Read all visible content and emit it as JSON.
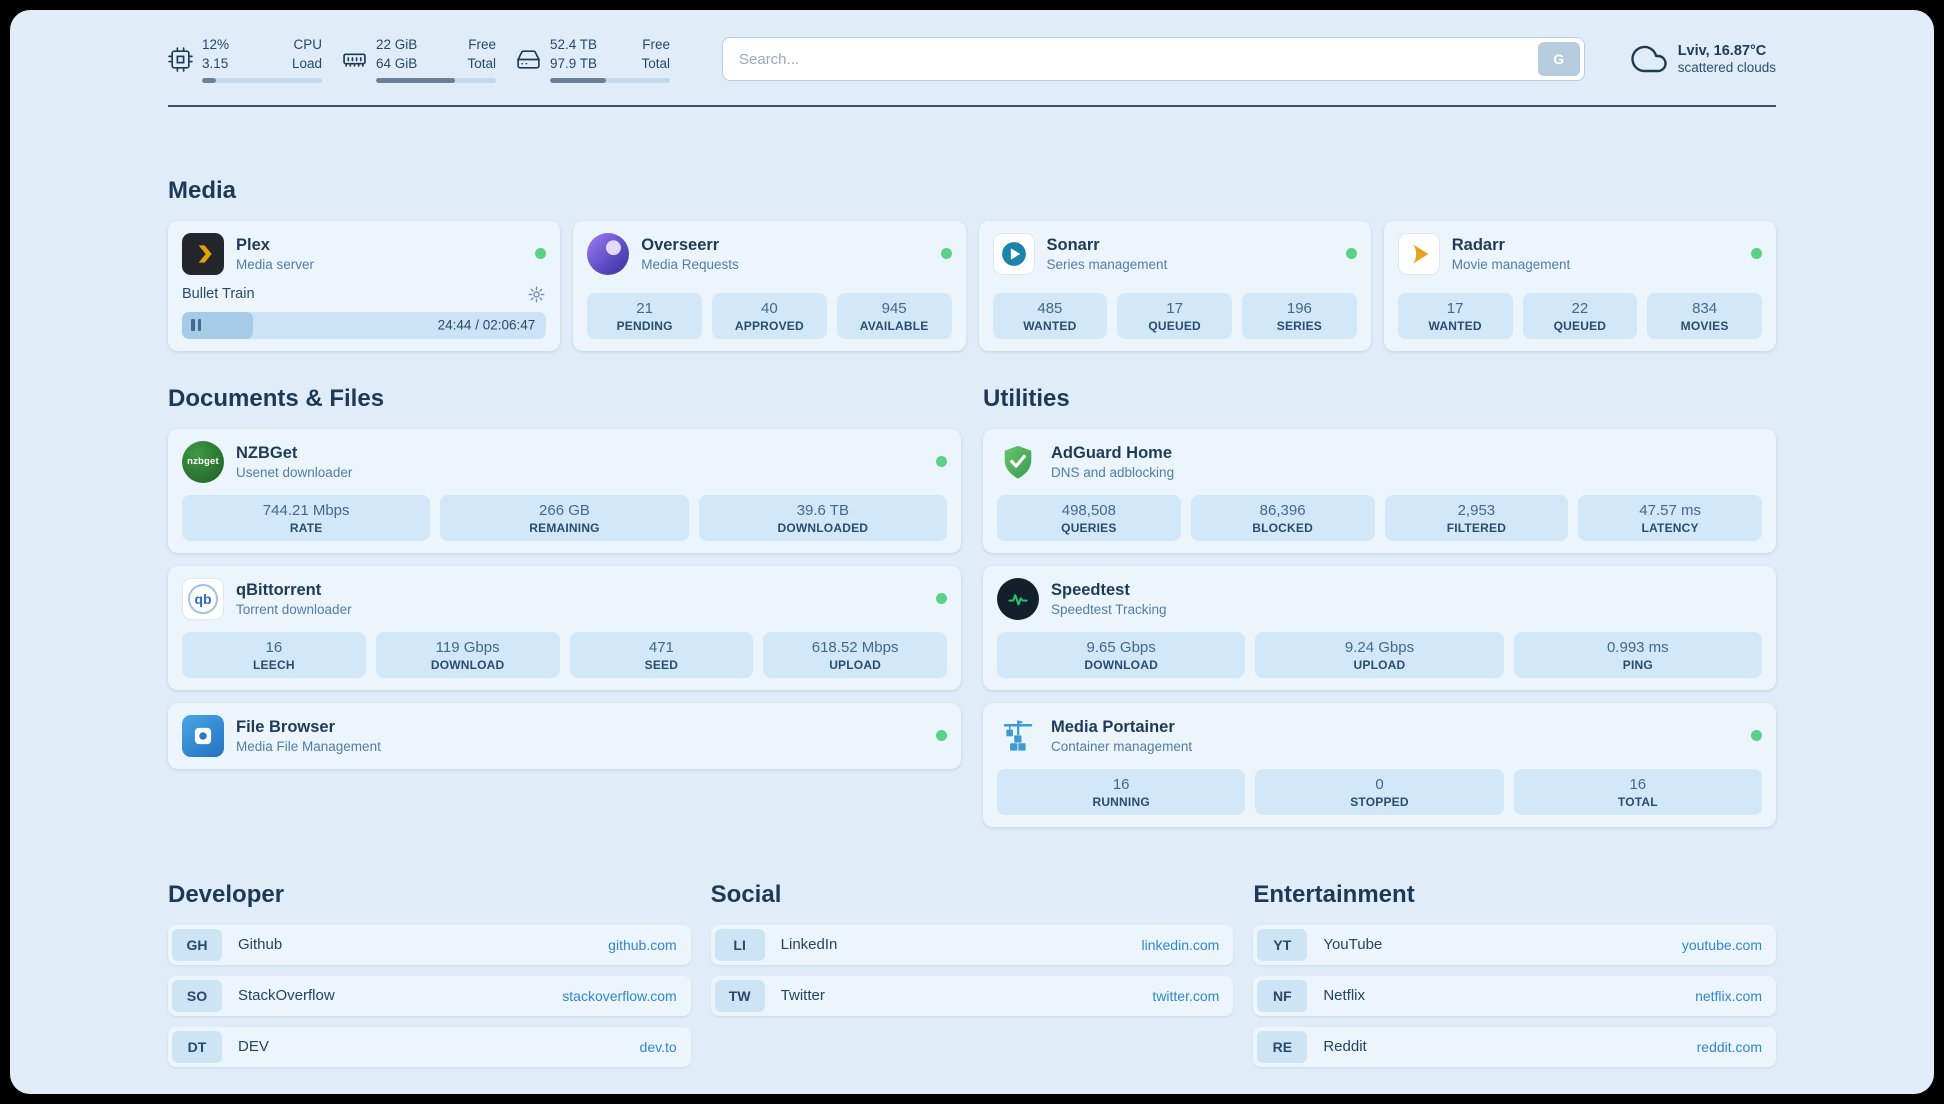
{
  "colors": {
    "page_bg": "#e0edf8",
    "accent_link": "#2f86d4",
    "status_ok": "#5ad189"
  },
  "icons": {
    "cpu": "chip-icon",
    "memory": "memory-icon",
    "disk": "hard-drive-icon",
    "weather": "cloud-icon",
    "plex_settings": "gear-icon",
    "player_state": "pause-icon",
    "service_status": "status-dot"
  },
  "topbar": {
    "cpu": {
      "value_top": "12%",
      "value_bottom": "3.15",
      "label_top": "CPU",
      "label_bottom": "Load",
      "percent": 12
    },
    "memory": {
      "value_top": "22 GiB",
      "value_bottom": "64 GiB",
      "label_top": "Free",
      "label_bottom": "Total",
      "percent": 66
    },
    "disk": {
      "value_top": "52.4 TB",
      "value_bottom": "97.9 TB",
      "label_top": "Free",
      "label_bottom": "Total",
      "percent": 47
    },
    "search": {
      "placeholder": "Search...",
      "button_label": "G"
    },
    "weather": {
      "location": "Lviv, 16.87°C",
      "condition": "scattered clouds"
    }
  },
  "media": {
    "heading": "Media",
    "plex": {
      "name": "Plex",
      "desc": "Media server",
      "now_playing": {
        "title": "Bullet Train",
        "time": "24:44 / 02:06:47",
        "percent": 19.5
      }
    },
    "overseerr": {
      "name": "Overseerr",
      "desc": "Media Requests",
      "stats": [
        {
          "value": "21",
          "label": "PENDING"
        },
        {
          "value": "40",
          "label": "APPROVED"
        },
        {
          "value": "945",
          "label": "AVAILABLE"
        }
      ]
    },
    "sonarr": {
      "name": "Sonarr",
      "desc": "Series management",
      "stats": [
        {
          "value": "485",
          "label": "WANTED"
        },
        {
          "value": "17",
          "label": "QUEUED"
        },
        {
          "value": "196",
          "label": "SERIES"
        }
      ]
    },
    "radarr": {
      "name": "Radarr",
      "desc": "Movie management",
      "stats": [
        {
          "value": "17",
          "label": "WANTED"
        },
        {
          "value": "22",
          "label": "QUEUED"
        },
        {
          "value": "834",
          "label": "MOVIES"
        }
      ]
    }
  },
  "documents": {
    "heading": "Documents & Files",
    "nzbget": {
      "name": "NZBGet",
      "desc": "Usenet downloader",
      "icon_text": "nzbget",
      "stats": [
        {
          "value": "744.21 Mbps",
          "label": "RATE"
        },
        {
          "value": "266 GB",
          "label": "REMAINING"
        },
        {
          "value": "39.6 TB",
          "label": "DOWNLOADED"
        }
      ]
    },
    "qbittorrent": {
      "name": "qBittorrent",
      "desc": "Torrent downloader",
      "icon_text": "qb",
      "stats": [
        {
          "value": "16",
          "label": "LEECH"
        },
        {
          "value": "119 Gbps",
          "label": "DOWNLOAD"
        },
        {
          "value": "471",
          "label": "SEED"
        },
        {
          "value": "618.52 Mbps",
          "label": "UPLOAD"
        }
      ]
    },
    "filebrowser": {
      "name": "File Browser",
      "desc": "Media File Management"
    }
  },
  "utilities": {
    "heading": "Utilities",
    "adguard": {
      "name": "AdGuard Home",
      "desc": "DNS and adblocking",
      "stats": [
        {
          "value": "498,508",
          "label": "QUERIES"
        },
        {
          "value": "86,396",
          "label": "BLOCKED"
        },
        {
          "value": "2,953",
          "label": "FILTERED"
        },
        {
          "value": "47.57 ms",
          "label": "LATENCY"
        }
      ]
    },
    "speedtest": {
      "name": "Speedtest",
      "desc": "Speedtest Tracking",
      "stats": [
        {
          "value": "9.65 Gbps",
          "label": "DOWNLOAD"
        },
        {
          "value": "9.24 Gbps",
          "label": "UPLOAD"
        },
        {
          "value": "0.993 ms",
          "label": "PING"
        }
      ]
    },
    "portainer": {
      "name": "Media Portainer",
      "desc": "Container management",
      "stats": [
        {
          "value": "16",
          "label": "RUNNING"
        },
        {
          "value": "0",
          "label": "STOPPED"
        },
        {
          "value": "16",
          "label": "TOTAL"
        }
      ]
    }
  },
  "bookmarks": {
    "developer": {
      "heading": "Developer",
      "items": [
        {
          "abbr": "GH",
          "name": "Github",
          "url": "github.com"
        },
        {
          "abbr": "SO",
          "name": "StackOverflow",
          "url": "stackoverflow.com"
        },
        {
          "abbr": "DT",
          "name": "DEV",
          "url": "dev.to"
        }
      ]
    },
    "social": {
      "heading": "Social",
      "items": [
        {
          "abbr": "LI",
          "name": "LinkedIn",
          "url": "linkedin.com"
        },
        {
          "abbr": "TW",
          "name": "Twitter",
          "url": "twitter.com"
        }
      ]
    },
    "entertainment": {
      "heading": "Entertainment",
      "items": [
        {
          "abbr": "YT",
          "name": "YouTube",
          "url": "youtube.com"
        },
        {
          "abbr": "NF",
          "name": "Netflix",
          "url": "netflix.com"
        },
        {
          "abbr": "RE",
          "name": "Reddit",
          "url": "reddit.com"
        }
      ]
    }
  }
}
